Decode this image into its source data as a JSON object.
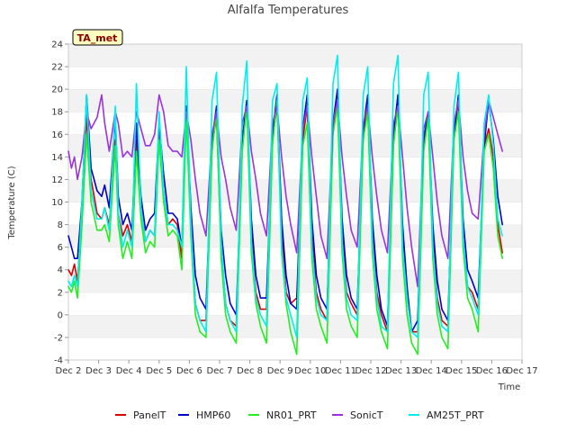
{
  "chart_data": {
    "type": "line",
    "title": "Alfalfa Temperatures",
    "xlabel": "Time",
    "ylabel": "Temperature (C)",
    "badge": "TA_met",
    "xlim": [
      2,
      17
    ],
    "ylim": [
      -4,
      24
    ],
    "x_ticks": [
      {
        "value": 2,
        "label": "Dec 2"
      },
      {
        "value": 3,
        "label": "Dec 3"
      },
      {
        "value": 4,
        "label": "Dec 4"
      },
      {
        "value": 5,
        "label": "Dec 5"
      },
      {
        "value": 6,
        "label": "Dec 6"
      },
      {
        "value": 7,
        "label": "Dec 7"
      },
      {
        "value": 8,
        "label": "Dec 8"
      },
      {
        "value": 9,
        "label": "Dec 9"
      },
      {
        "value": 10,
        "label": "Dec 10"
      },
      {
        "value": 11,
        "label": "Dec 11"
      },
      {
        "value": 12,
        "label": "Dec 12"
      },
      {
        "value": 13,
        "label": "Dec 13"
      },
      {
        "value": 14,
        "label": "Dec 14"
      },
      {
        "value": 15,
        "label": "Dec 15"
      },
      {
        "value": 16,
        "label": "Dec 16"
      },
      {
        "value": 17,
        "label": "Dec 17"
      }
    ],
    "y_ticks": [
      -4,
      -2,
      0,
      2,
      4,
      6,
      8,
      10,
      12,
      14,
      16,
      18,
      20,
      22,
      24
    ],
    "grid": "horizontal bands",
    "legend_position": "bottom",
    "series": [
      {
        "name": "PanelT",
        "color": "#dd0000",
        "x": [
          2.0,
          2.1,
          2.2,
          2.3,
          2.45,
          2.6,
          2.75,
          2.95,
          3.1,
          3.2,
          3.35,
          3.55,
          3.65,
          3.8,
          3.95,
          4.1,
          4.25,
          4.4,
          4.55,
          4.7,
          4.85,
          5.0,
          5.15,
          5.3,
          5.45,
          5.6,
          5.75,
          5.9,
          6.05,
          6.2,
          6.35,
          6.55,
          6.75,
          6.9,
          7.05,
          7.2,
          7.35,
          7.55,
          7.75,
          7.9,
          8.05,
          8.2,
          8.35,
          8.55,
          8.75,
          8.9,
          9.05,
          9.2,
          9.35,
          9.55,
          9.75,
          9.9,
          10.05,
          10.2,
          10.35,
          10.55,
          10.75,
          10.9,
          11.05,
          11.2,
          11.35,
          11.55,
          11.75,
          11.9,
          12.05,
          12.2,
          12.35,
          12.55,
          12.75,
          12.9,
          13.05,
          13.2,
          13.35,
          13.55,
          13.75,
          13.9,
          14.05,
          14.2,
          14.35,
          14.55,
          14.75,
          14.9,
          15.05,
          15.2,
          15.35,
          15.55,
          15.75,
          15.9,
          16.05,
          16.2,
          16.35
        ],
        "y": [
          4.0,
          3.5,
          4.5,
          3.0,
          9.0,
          17.5,
          12.0,
          9.0,
          8.5,
          9.5,
          8.0,
          15.5,
          9.0,
          7.0,
          8.0,
          6.5,
          15.5,
          9.5,
          6.5,
          7.5,
          7.0,
          16.5,
          11.0,
          8.0,
          8.5,
          8.0,
          5.0,
          18.5,
          8.0,
          1.0,
          -0.5,
          -0.5,
          15.0,
          17.5,
          6.0,
          1.0,
          -0.5,
          -1.0,
          15.0,
          19.0,
          7.0,
          2.0,
          0.5,
          0.5,
          15.5,
          18.5,
          7.5,
          2.0,
          1.0,
          1.5,
          15.5,
          18.5,
          7.0,
          2.0,
          0.5,
          -0.5,
          16.5,
          19.0,
          7.0,
          2.0,
          1.0,
          0.0,
          16.0,
          18.5,
          7.0,
          2.0,
          0.0,
          -1.5,
          15.5,
          19.5,
          7.0,
          1.5,
          -1.5,
          -1.5,
          15.0,
          17.5,
          6.5,
          1.5,
          -0.5,
          -1.0,
          16.0,
          19.0,
          7.0,
          2.5,
          2.0,
          0.5,
          15.0,
          16.5,
          14.0,
          8.0,
          5.5
        ]
      },
      {
        "name": "HMP60",
        "color": "#0000cc",
        "x": [
          2.0,
          2.1,
          2.2,
          2.3,
          2.45,
          2.6,
          2.75,
          2.95,
          3.1,
          3.2,
          3.35,
          3.55,
          3.65,
          3.8,
          3.95,
          4.1,
          4.25,
          4.4,
          4.55,
          4.7,
          4.85,
          5.0,
          5.15,
          5.3,
          5.45,
          5.6,
          5.75,
          5.9,
          6.05,
          6.2,
          6.35,
          6.55,
          6.75,
          6.9,
          7.05,
          7.2,
          7.35,
          7.55,
          7.75,
          7.9,
          8.05,
          8.2,
          8.35,
          8.55,
          8.75,
          8.9,
          9.05,
          9.2,
          9.35,
          9.55,
          9.75,
          9.9,
          10.05,
          10.2,
          10.35,
          10.55,
          10.75,
          10.9,
          11.05,
          11.2,
          11.35,
          11.55,
          11.75,
          11.9,
          12.05,
          12.2,
          12.35,
          12.55,
          12.75,
          12.9,
          13.05,
          13.2,
          13.35,
          13.55,
          13.75,
          13.9,
          14.05,
          14.2,
          14.35,
          14.55,
          14.75,
          14.9,
          15.05,
          15.2,
          15.35,
          15.55,
          15.75,
          15.9,
          16.05,
          16.2,
          16.35
        ],
        "y": [
          7.0,
          6.0,
          5.0,
          5.0,
          10.0,
          19.5,
          13.0,
          11.0,
          10.5,
          11.5,
          9.5,
          17.5,
          10.5,
          8.0,
          9.0,
          7.5,
          17.0,
          10.5,
          7.5,
          8.5,
          9.0,
          17.0,
          12.5,
          9.0,
          9.0,
          8.5,
          6.0,
          18.5,
          9.5,
          3.5,
          1.5,
          0.5,
          15.5,
          18.5,
          7.5,
          3.5,
          1.0,
          0.0,
          15.5,
          19.0,
          8.5,
          3.5,
          1.5,
          1.5,
          16.0,
          19.5,
          8.5,
          3.5,
          1.0,
          0.5,
          16.5,
          19.5,
          8.5,
          3.5,
          1.5,
          0.5,
          17.0,
          20.0,
          8.5,
          3.5,
          1.5,
          0.5,
          16.5,
          19.5,
          8.5,
          3.5,
          0.5,
          -1.0,
          16.0,
          19.5,
          8.0,
          2.5,
          -1.5,
          -0.5,
          15.5,
          18.0,
          8.0,
          3.0,
          0.5,
          -0.5,
          16.0,
          19.5,
          8.5,
          4.0,
          3.0,
          1.5,
          15.0,
          19.0,
          15.5,
          10.5,
          8.0
        ]
      },
      {
        "name": "NR01_PRT",
        "color": "#22ee22",
        "x": [
          2.0,
          2.1,
          2.2,
          2.3,
          2.45,
          2.6,
          2.75,
          2.95,
          3.1,
          3.2,
          3.35,
          3.55,
          3.65,
          3.8,
          3.95,
          4.1,
          4.25,
          4.4,
          4.55,
          4.7,
          4.85,
          5.0,
          5.15,
          5.3,
          5.45,
          5.6,
          5.75,
          5.9,
          6.05,
          6.2,
          6.35,
          6.55,
          6.75,
          6.9,
          7.05,
          7.2,
          7.35,
          7.55,
          7.75,
          7.9,
          8.05,
          8.2,
          8.35,
          8.55,
          8.75,
          8.9,
          9.05,
          9.2,
          9.35,
          9.55,
          9.75,
          9.9,
          10.05,
          10.2,
          10.35,
          10.55,
          10.75,
          10.9,
          11.05,
          11.2,
          11.35,
          11.55,
          11.75,
          11.9,
          12.05,
          12.2,
          12.35,
          12.55,
          12.75,
          12.9,
          13.05,
          13.2,
          13.35,
          13.55,
          13.75,
          13.9,
          14.05,
          14.2,
          14.35,
          14.55,
          14.75,
          14.9,
          15.05,
          15.2,
          15.35,
          15.55,
          15.75,
          15.9,
          16.05,
          16.2,
          16.35
        ],
        "y": [
          2.5,
          2.0,
          3.0,
          1.5,
          8.0,
          16.0,
          10.0,
          7.5,
          7.5,
          8.0,
          6.5,
          15.0,
          8.0,
          5.0,
          6.5,
          5.0,
          14.5,
          8.5,
          5.5,
          6.5,
          6.0,
          15.5,
          10.0,
          7.0,
          7.5,
          7.0,
          4.0,
          17.5,
          7.0,
          0.0,
          -1.5,
          -2.0,
          14.5,
          18.0,
          5.0,
          0.0,
          -1.5,
          -2.5,
          14.5,
          18.5,
          5.5,
          1.0,
          -1.0,
          -2.5,
          15.0,
          19.0,
          5.5,
          1.0,
          -1.5,
          -3.5,
          15.0,
          17.0,
          5.0,
          0.5,
          -1.0,
          -2.5,
          16.0,
          18.5,
          5.5,
          0.5,
          -1.0,
          -2.0,
          15.5,
          18.0,
          5.5,
          0.5,
          -1.5,
          -3.0,
          15.0,
          18.5,
          5.0,
          0.0,
          -2.5,
          -3.5,
          14.5,
          17.5,
          5.0,
          0.0,
          -2.0,
          -3.0,
          15.5,
          18.0,
          6.0,
          1.5,
          0.5,
          -1.5,
          14.5,
          16.0,
          13.0,
          7.0,
          5.0
        ]
      },
      {
        "name": "SonicT",
        "color": "#9933dd",
        "x": [
          2.0,
          2.1,
          2.2,
          2.3,
          2.45,
          2.6,
          2.75,
          2.95,
          3.1,
          3.2,
          3.35,
          3.55,
          3.65,
          3.8,
          3.95,
          4.1,
          4.25,
          4.4,
          4.55,
          4.7,
          4.85,
          5.0,
          5.15,
          5.3,
          5.45,
          5.6,
          5.75,
          5.9,
          6.05,
          6.2,
          6.35,
          6.55,
          6.75,
          6.9,
          7.05,
          7.2,
          7.35,
          7.55,
          7.75,
          7.9,
          8.05,
          8.2,
          8.35,
          8.55,
          8.75,
          8.9,
          9.05,
          9.2,
          9.35,
          9.55,
          9.75,
          9.9,
          10.05,
          10.2,
          10.35,
          10.55,
          10.75,
          10.9,
          11.05,
          11.2,
          11.35,
          11.55,
          11.75,
          11.9,
          12.05,
          12.2,
          12.35,
          12.55,
          12.75,
          12.9,
          13.05,
          13.2,
          13.35,
          13.55,
          13.75,
          13.9,
          14.05,
          14.2,
          14.35,
          14.55,
          14.75,
          14.9,
          15.05,
          15.2,
          15.35,
          15.55,
          15.75,
          15.9,
          16.05,
          16.2,
          16.35
        ],
        "y": [
          14.5,
          13.0,
          14.0,
          12.0,
          14.0,
          18.0,
          16.5,
          17.5,
          19.5,
          17.0,
          14.5,
          18.0,
          17.0,
          14.0,
          14.5,
          14.0,
          18.0,
          16.5,
          15.0,
          15.0,
          16.0,
          19.5,
          18.0,
          15.0,
          14.5,
          14.5,
          14.0,
          18.0,
          15.5,
          12.0,
          9.0,
          7.0,
          16.0,
          18.0,
          14.0,
          12.0,
          9.5,
          7.5,
          17.0,
          18.5,
          14.5,
          12.0,
          9.0,
          7.0,
          17.0,
          18.5,
          14.0,
          10.5,
          8.0,
          5.5,
          16.5,
          18.5,
          14.0,
          10.5,
          7.0,
          5.0,
          17.0,
          19.0,
          14.0,
          10.5,
          7.5,
          6.0,
          17.0,
          18.5,
          14.0,
          10.5,
          7.5,
          5.5,
          17.0,
          18.5,
          14.0,
          9.5,
          6.0,
          2.5,
          16.5,
          18.0,
          14.0,
          10.0,
          7.0,
          5.0,
          17.0,
          19.0,
          14.0,
          11.0,
          9.0,
          8.5,
          16.0,
          19.0,
          17.5,
          16.0,
          14.5
        ]
      },
      {
        "name": "AM25T_PRT",
        "color": "#00eeee",
        "x": [
          2.0,
          2.1,
          2.2,
          2.3,
          2.45,
          2.6,
          2.75,
          2.95,
          3.1,
          3.2,
          3.35,
          3.55,
          3.65,
          3.8,
          3.95,
          4.1,
          4.25,
          4.4,
          4.55,
          4.7,
          4.85,
          5.0,
          5.15,
          5.3,
          5.45,
          5.6,
          5.75,
          5.9,
          6.05,
          6.2,
          6.35,
          6.55,
          6.75,
          6.9,
          7.05,
          7.2,
          7.35,
          7.55,
          7.75,
          7.9,
          8.05,
          8.2,
          8.35,
          8.55,
          8.75,
          8.9,
          9.05,
          9.2,
          9.35,
          9.55,
          9.75,
          9.9,
          10.05,
          10.2,
          10.35,
          10.55,
          10.75,
          10.9,
          11.05,
          11.2,
          11.35,
          11.55,
          11.75,
          11.9,
          12.05,
          12.2,
          12.35,
          12.55,
          12.75,
          12.9,
          13.05,
          13.2,
          13.35,
          13.55,
          13.75,
          13.9,
          14.05,
          14.2,
          14.35,
          14.55,
          14.75,
          14.9,
          15.05,
          15.2,
          15.35,
          15.55,
          15.75,
          15.9,
          16.05,
          16.2,
          16.35
        ],
        "y": [
          3.0,
          2.5,
          3.5,
          2.5,
          10.0,
          19.5,
          11.0,
          8.5,
          8.5,
          9.5,
          7.5,
          18.5,
          9.0,
          6.0,
          7.5,
          6.0,
          20.5,
          9.5,
          6.5,
          7.5,
          7.0,
          18.0,
          11.0,
          8.0,
          8.0,
          7.5,
          6.0,
          22.0,
          8.0,
          1.0,
          -0.5,
          -1.5,
          19.0,
          21.5,
          6.5,
          1.0,
          -0.5,
          -1.5,
          18.5,
          22.5,
          6.5,
          1.5,
          0.0,
          -1.0,
          19.0,
          20.5,
          6.0,
          1.5,
          0.0,
          -2.0,
          19.0,
          21.0,
          6.0,
          1.5,
          0.0,
          -0.5,
          20.5,
          23.0,
          6.5,
          1.5,
          0.0,
          -0.5,
          19.5,
          22.0,
          6.5,
          1.5,
          -1.0,
          -1.5,
          20.5,
          23.0,
          6.0,
          1.5,
          -1.5,
          -2.0,
          19.5,
          21.5,
          6.0,
          1.0,
          -1.0,
          -1.5,
          18.5,
          21.5,
          7.0,
          2.5,
          1.5,
          0.0,
          17.0,
          19.5,
          15.0,
          8.5,
          7.0
        ]
      }
    ]
  }
}
